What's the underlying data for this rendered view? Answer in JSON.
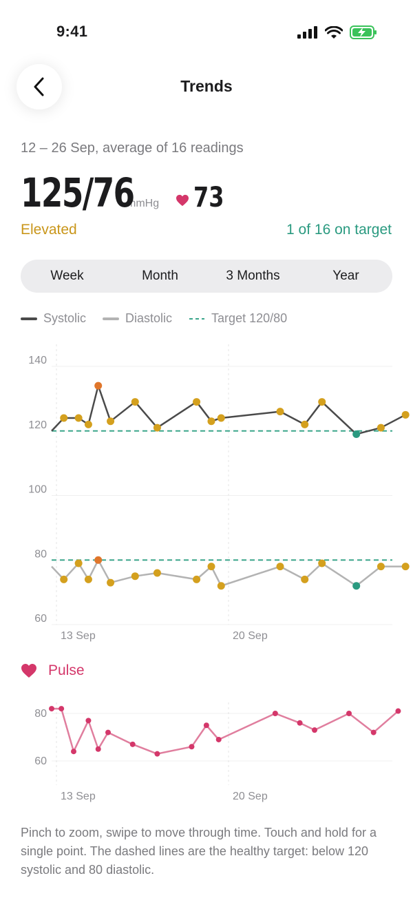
{
  "status_bar": {
    "time": "9:41"
  },
  "nav": {
    "title": "Trends"
  },
  "summary": {
    "range": "12 – 26 Sep, average of 16 readings",
    "value": "125/76",
    "unit": "mmHg",
    "pulse": "73",
    "category": "Elevated",
    "target_count": "1 of 16 on target"
  },
  "periods": [
    "Week",
    "Month",
    "3 Months",
    "Year"
  ],
  "legend": {
    "systolic": "Systolic",
    "diastolic": "Diastolic",
    "target": "Target 120/80"
  },
  "pulse_section": {
    "title": "Pulse"
  },
  "footnote": "Pinch to zoom, swipe to move through time. Touch and hold for a single point. The dashed lines are the healthy target: below 120 systolic and 80 diastolic.",
  "colors": {
    "systolic_line": "#4a4a4a",
    "diastolic_line": "#b3b3b3",
    "target": "#3aa58a",
    "elevated_point": "#d4a01e",
    "high_point": "#e0762b",
    "normal_point": "#2a9a80",
    "pulse": "#e07e9e",
    "pulse_point": "#d4376a"
  },
  "chart_data": [
    {
      "type": "line",
      "x_ticks": [
        "13 Sep",
        "20 Sep"
      ],
      "y_ticks": [
        140,
        120,
        100,
        80,
        60
      ],
      "ylim": [
        60,
        140
      ],
      "target": {
        "systolic": 120,
        "diastolic": 80
      },
      "x": [
        12.2,
        12.6,
        13.3,
        13.9,
        14.3,
        14.7,
        15.2,
        16.2,
        17.1,
        18.7,
        19.3,
        19.7,
        22.1,
        23.1,
        23.8,
        25.2,
        26.2,
        27.2
      ],
      "series": [
        {
          "name": "Systolic",
          "values": [
            120,
            null,
            124,
            124,
            122,
            134,
            123,
            129,
            121,
            129,
            123,
            124,
            126,
            122,
            129,
            119,
            121,
            125
          ]
        },
        {
          "name": "Diastolic",
          "values": [
            78,
            null,
            74,
            79,
            74,
            80,
            73,
            75,
            76,
            74,
            78,
            72,
            78,
            74,
            79,
            72,
            78,
            78
          ]
        }
      ],
      "point_status": [
        "none",
        "none",
        "elevated",
        "elevated",
        "elevated",
        "high",
        "elevated",
        "elevated",
        "elevated",
        "elevated",
        "elevated",
        "elevated",
        "elevated",
        "elevated",
        "elevated",
        "normal",
        "elevated",
        "elevated"
      ]
    },
    {
      "type": "line",
      "title": "Pulse",
      "x_ticks": [
        "13 Sep",
        "20 Sep"
      ],
      "y_ticks": [
        80,
        60
      ],
      "x": [
        12.2,
        12.6,
        13.2,
        13.7,
        14.3,
        14.7,
        15.1,
        16.1,
        17.1,
        18.5,
        19.1,
        19.6,
        21.9,
        22.9,
        23.5,
        24.9,
        25.9,
        26.9
      ],
      "series": [
        {
          "values": [
            82,
            82,
            82,
            64,
            77,
            65,
            72,
            67,
            63,
            66,
            75,
            69,
            80,
            76,
            73,
            80,
            72,
            81
          ]
        }
      ]
    }
  ]
}
